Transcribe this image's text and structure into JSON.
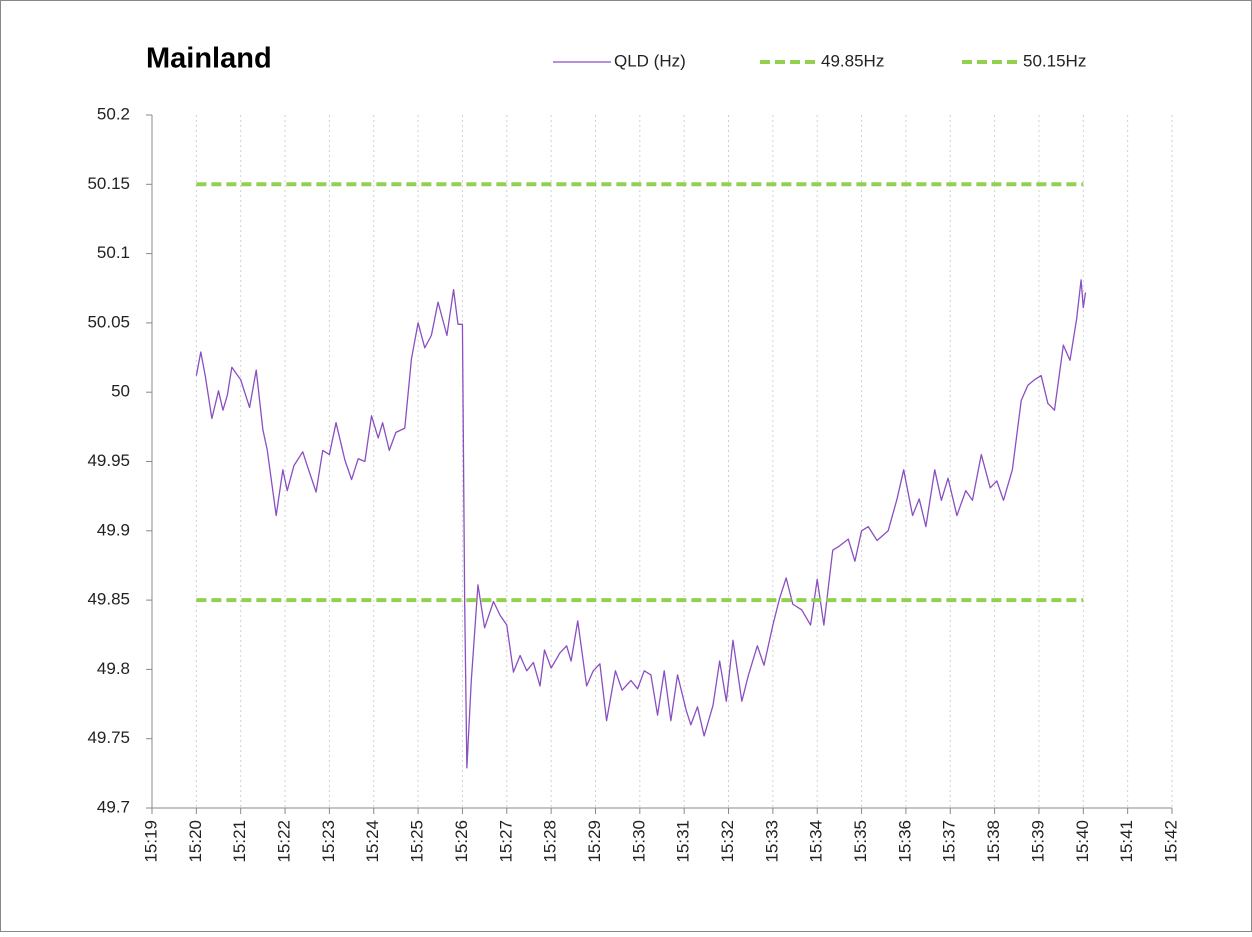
{
  "chart_data": {
    "type": "line",
    "title": "Mainland",
    "xlim": [
      19,
      42
    ],
    "xticks": [
      {
        "value": 19,
        "label": "15:19"
      },
      {
        "value": 20,
        "label": "15:20"
      },
      {
        "value": 21,
        "label": "15:21"
      },
      {
        "value": 22,
        "label": "15:22"
      },
      {
        "value": 23,
        "label": "15:23"
      },
      {
        "value": 24,
        "label": "15:24"
      },
      {
        "value": 25,
        "label": "15:25"
      },
      {
        "value": 26,
        "label": "15:26"
      },
      {
        "value": 27,
        "label": "15:27"
      },
      {
        "value": 28,
        "label": "15:28"
      },
      {
        "value": 29,
        "label": "15:29"
      },
      {
        "value": 30,
        "label": "15:30"
      },
      {
        "value": 31,
        "label": "15:31"
      },
      {
        "value": 32,
        "label": "15:32"
      },
      {
        "value": 33,
        "label": "15:33"
      },
      {
        "value": 34,
        "label": "15:34"
      },
      {
        "value": 35,
        "label": "15:35"
      },
      {
        "value": 36,
        "label": "15:36"
      },
      {
        "value": 37,
        "label": "15:37"
      },
      {
        "value": 38,
        "label": "15:38"
      },
      {
        "value": 39,
        "label": "15:39"
      },
      {
        "value": 40,
        "label": "15:40"
      },
      {
        "value": 41,
        "label": "15:41"
      },
      {
        "value": 42,
        "label": "15:42"
      }
    ],
    "ylim": [
      49.7,
      50.2
    ],
    "yticks": [
      49.7,
      49.75,
      49.8,
      49.85,
      49.9,
      49.95,
      50,
      50.05,
      50.1,
      50.15,
      50.2
    ],
    "grid": true,
    "series": [
      {
        "name": "QLD (Hz)",
        "color": "#8a4fc0",
        "dash": false,
        "x": [
          20.0,
          20.1,
          20.2,
          20.35,
          20.5,
          20.6,
          20.7,
          20.8,
          21.0,
          21.2,
          21.35,
          21.5,
          21.6,
          21.8,
          21.95,
          22.05,
          22.2,
          22.4,
          22.5,
          22.7,
          22.85,
          23.0,
          23.15,
          23.35,
          23.5,
          23.65,
          23.8,
          23.95,
          24.1,
          24.2,
          24.35,
          24.5,
          24.7,
          24.85,
          25.0,
          25.15,
          25.3,
          25.45,
          25.65,
          25.8,
          25.9,
          26.0,
          26.05,
          26.1,
          26.2,
          26.35,
          26.5,
          26.7,
          26.85,
          27.0,
          27.15,
          27.3,
          27.45,
          27.6,
          27.75,
          27.85,
          28.0,
          28.2,
          28.35,
          28.45,
          28.6,
          28.8,
          28.95,
          29.1,
          29.25,
          29.45,
          29.6,
          29.8,
          29.95,
          30.1,
          30.25,
          30.4,
          30.55,
          30.7,
          30.85,
          31.05,
          31.15,
          31.3,
          31.45,
          31.65,
          31.8,
          31.95,
          32.1,
          32.3,
          32.45,
          32.65,
          32.8,
          33.0,
          33.15,
          33.3,
          33.45,
          33.65,
          33.85,
          34.0,
          34.15,
          34.35,
          34.5,
          34.7,
          34.85,
          35.0,
          35.15,
          35.35,
          35.6,
          35.8,
          35.95,
          36.15,
          36.3,
          36.45,
          36.65,
          36.8,
          36.95,
          37.15,
          37.35,
          37.5,
          37.7,
          37.9,
          38.05,
          38.2,
          38.4,
          38.6,
          38.75,
          38.9,
          39.05,
          39.2,
          39.35,
          39.55,
          39.7,
          39.85,
          39.95,
          40.0,
          40.05
        ],
        "values": [
          50.012,
          50.029,
          50.012,
          49.981,
          50.001,
          49.987,
          49.998,
          50.018,
          50.009,
          49.989,
          50.016,
          49.973,
          49.958,
          49.911,
          49.944,
          49.929,
          49.947,
          49.957,
          49.947,
          49.928,
          49.958,
          49.955,
          49.978,
          49.951,
          49.937,
          49.952,
          49.95,
          49.983,
          49.967,
          49.978,
          49.958,
          49.971,
          49.974,
          50.024,
          50.05,
          50.032,
          50.041,
          50.065,
          50.041,
          50.074,
          50.049,
          50.049,
          49.85,
          49.729,
          49.792,
          49.861,
          49.83,
          49.849,
          49.839,
          49.832,
          49.798,
          49.81,
          49.799,
          49.805,
          49.788,
          49.814,
          49.801,
          49.812,
          49.817,
          49.806,
          49.835,
          49.788,
          49.799,
          49.804,
          49.763,
          49.799,
          49.785,
          49.792,
          49.786,
          49.799,
          49.796,
          49.767,
          49.799,
          49.763,
          49.796,
          49.77,
          49.76,
          49.773,
          49.752,
          49.774,
          49.806,
          49.777,
          49.821,
          49.777,
          49.796,
          49.817,
          49.803,
          49.832,
          49.851,
          49.866,
          49.847,
          49.843,
          49.832,
          49.865,
          49.832,
          49.886,
          49.889,
          49.894,
          49.878,
          49.9,
          49.903,
          49.893,
          49.9,
          49.923,
          49.944,
          49.911,
          49.923,
          49.903,
          49.944,
          49.922,
          49.938,
          49.911,
          49.929,
          49.922,
          49.955,
          49.931,
          49.936,
          49.922,
          49.944,
          49.994,
          50.005,
          50.009,
          50.012,
          49.992,
          49.987,
          50.034,
          50.023,
          50.053,
          50.081,
          50.061,
          50.072
        ]
      },
      {
        "name": "49.85Hz",
        "color": "#92d050",
        "dash": true,
        "x": [
          20,
          40
        ],
        "values": [
          49.85,
          49.85
        ]
      },
      {
        "name": "50.15Hz",
        "color": "#92d050",
        "dash": true,
        "x": [
          20,
          40
        ],
        "values": [
          50.15,
          50.15
        ]
      }
    ]
  }
}
